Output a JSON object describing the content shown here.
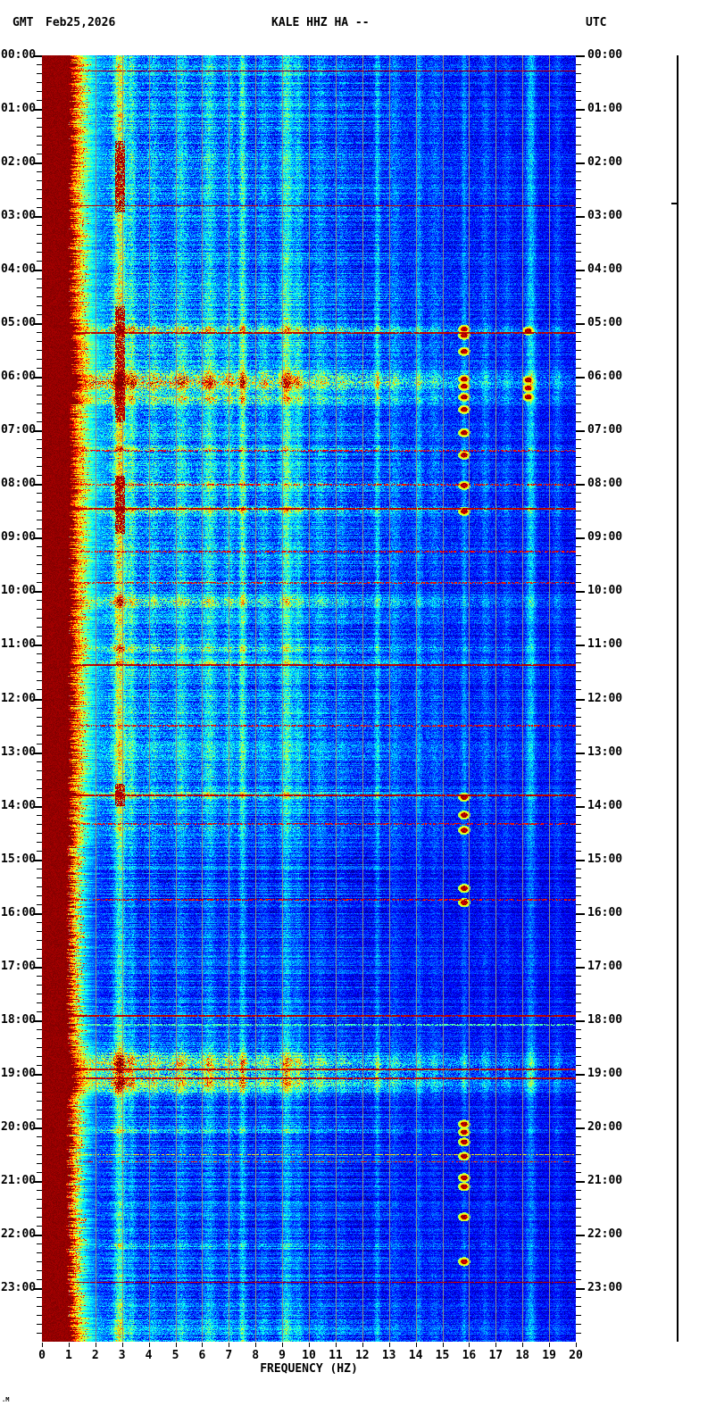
{
  "header": {
    "left_label": "GMT",
    "date": "Feb25,2026",
    "title": "KALE HHZ HA --",
    "right_label": "UTC"
  },
  "footer": {
    "xlabel": "FREQUENCY (HZ)",
    "artifact_mark": ".M"
  },
  "axes": {
    "hour_labels": [
      "00:00",
      "01:00",
      "02:00",
      "03:00",
      "04:00",
      "05:00",
      "06:00",
      "07:00",
      "08:00",
      "09:00",
      "10:00",
      "11:00",
      "12:00",
      "13:00",
      "14:00",
      "15:00",
      "16:00",
      "17:00",
      "18:00",
      "19:00",
      "20:00",
      "21:00",
      "22:00",
      "23:00"
    ],
    "freq_tick_labels": [
      "0",
      "1",
      "2",
      "3",
      "4",
      "5",
      "6",
      "7",
      "8",
      "9",
      "10",
      "11",
      "12",
      "13",
      "14",
      "15",
      "16",
      "17",
      "18",
      "19",
      "20"
    ],
    "minor_tick_minutes": 10
  },
  "chart_data": {
    "type": "heatmap",
    "subtype": "seismic-spectrogram",
    "title": "KALE HHZ HA --",
    "date": "Feb25,2026",
    "timezone": "GMT/UTC",
    "xlabel": "FREQUENCY (HZ)",
    "x_range_hz": [
      0,
      20
    ],
    "y_range_hours": [
      0,
      24
    ],
    "colormap": "jet",
    "grid": "vertical gray lines at integer Hz",
    "legend_position": "none",
    "features": {
      "activity_by_hour": [
        0.55,
        0.5,
        0.55,
        0.5,
        0.5,
        0.62,
        0.7,
        0.58,
        0.62,
        0.55,
        0.55,
        0.52,
        0.5,
        0.55,
        0.42,
        0.3,
        0.24,
        0.24,
        0.3,
        0.45,
        0.28,
        0.24,
        0.28,
        0.3
      ],
      "low_freq_saturated_band": {
        "red_to_hz": 1.0,
        "fringe_to_hz": 2.4
      },
      "grid_lines_hz": [
        1,
        2,
        3,
        4,
        5,
        6,
        7,
        8,
        9,
        10,
        11,
        12,
        13,
        14,
        15,
        16,
        17,
        18,
        19
      ],
      "vertical_stripes": [
        {
          "f": 2.9,
          "w": 0.22,
          "a": 0.5
        },
        {
          "f": 3.35,
          "w": 0.15,
          "a": 0.22
        },
        {
          "f": 4.15,
          "w": 0.2,
          "a": 0.12
        },
        {
          "f": 5.2,
          "w": 0.25,
          "a": 0.18
        },
        {
          "f": 6.25,
          "w": 0.25,
          "a": 0.22
        },
        {
          "f": 7.0,
          "w": 0.18,
          "a": 0.15
        },
        {
          "f": 7.5,
          "w": 0.14,
          "a": 0.32
        },
        {
          "f": 8.3,
          "w": 0.2,
          "a": 0.12
        },
        {
          "f": 9.15,
          "w": 0.22,
          "a": 0.32
        },
        {
          "f": 9.6,
          "w": 0.18,
          "a": 0.18
        },
        {
          "f": 10.4,
          "w": 0.25,
          "a": 0.12
        },
        {
          "f": 11.2,
          "w": 0.2,
          "a": 0.08
        },
        {
          "f": 12.55,
          "w": 0.1,
          "a": 0.22
        },
        {
          "f": 13.2,
          "w": 0.2,
          "a": 0.1
        },
        {
          "f": 14.1,
          "w": 0.12,
          "a": 0.15
        },
        {
          "f": 14.7,
          "w": 0.2,
          "a": 0.08
        },
        {
          "f": 15.8,
          "w": 0.1,
          "a": 0.15
        },
        {
          "f": 16.6,
          "w": 0.15,
          "a": 0.1
        },
        {
          "f": 17.4,
          "w": 0.15,
          "a": 0.08
        },
        {
          "f": 18.3,
          "w": 0.18,
          "a": 0.25
        },
        {
          "f": 19.3,
          "w": 0.15,
          "a": 0.1
        }
      ],
      "hot_stripe_hz": 2.9,
      "hot_stripe_windows": [
        [
          "01:35",
          "02:55"
        ],
        [
          "04:40",
          "06:50"
        ],
        [
          "07:50",
          "08:55"
        ],
        [
          "13:35",
          "14:00"
        ]
      ],
      "horizontal_lines": [
        {
          "time": "00:17",
          "style": "solid"
        },
        {
          "time": "02:48",
          "style": "solid"
        },
        {
          "time": "05:10",
          "style": "solid"
        },
        {
          "time": "07:22",
          "style": "dotted"
        },
        {
          "time": "08:00",
          "style": "dotted"
        },
        {
          "time": "08:27",
          "style": "solid"
        },
        {
          "time": "09:15",
          "style": "dotted"
        },
        {
          "time": "09:50",
          "style": "dotted"
        },
        {
          "time": "11:22",
          "style": "solid"
        },
        {
          "time": "12:30",
          "style": "dotted"
        },
        {
          "time": "13:48",
          "style": "solid"
        },
        {
          "time": "14:20",
          "style": "dotted"
        },
        {
          "time": "15:45",
          "style": "dotted"
        },
        {
          "time": "17:55",
          "style": "solid"
        },
        {
          "time": "18:05",
          "style": "cyan"
        },
        {
          "time": "18:55",
          "style": "solid"
        },
        {
          "time": "19:05",
          "style": "solid"
        },
        {
          "time": "20:30",
          "style": "yellow"
        },
        {
          "time": "20:38",
          "style": "dotted"
        },
        {
          "time": "22:53",
          "style": "solid"
        }
      ],
      "broadband_events": [
        {
          "time": "05:06",
          "minutes": 6,
          "amp": 0.45
        },
        {
          "time": "06:05",
          "minutes": 14,
          "amp": 0.7
        },
        {
          "time": "06:25",
          "minutes": 6,
          "amp": 0.4
        },
        {
          "time": "07:20",
          "minutes": 4,
          "amp": 0.25
        },
        {
          "time": "08:00",
          "minutes": 5,
          "amp": 0.3
        },
        {
          "time": "08:28",
          "minutes": 5,
          "amp": 0.5
        },
        {
          "time": "10:12",
          "minutes": 8,
          "amp": 0.35
        },
        {
          "time": "11:04",
          "minutes": 5,
          "amp": 0.3
        },
        {
          "time": "11:20",
          "minutes": 4,
          "amp": 0.25
        },
        {
          "time": "13:48",
          "minutes": 6,
          "amp": 0.35
        },
        {
          "time": "14:25",
          "minutes": 4,
          "amp": 0.2
        },
        {
          "time": "18:48",
          "minutes": 18,
          "amp": 0.55
        },
        {
          "time": "19:10",
          "minutes": 16,
          "amp": 0.5
        },
        {
          "time": "20:03",
          "minutes": 6,
          "amp": 0.25
        },
        {
          "time": "22:12",
          "minutes": 4,
          "amp": 0.18
        }
      ],
      "spot_blobs": [
        {
          "hz": 15.8,
          "times": [
            "05:06",
            "05:13",
            "05:31",
            "06:02",
            "06:10",
            "06:22",
            "06:36",
            "07:02",
            "07:27",
            "08:01",
            "08:30",
            "13:50",
            "14:10",
            "14:27",
            "15:32",
            "15:48",
            "19:56",
            "20:05",
            "20:16",
            "20:32",
            "20:56",
            "21:06",
            "21:40",
            "22:30"
          ]
        },
        {
          "hz": 18.2,
          "times": [
            "05:08",
            "06:03",
            "06:12",
            "06:22"
          ]
        }
      ]
    }
  },
  "scale_bar": {
    "tick_time": "02:48"
  }
}
